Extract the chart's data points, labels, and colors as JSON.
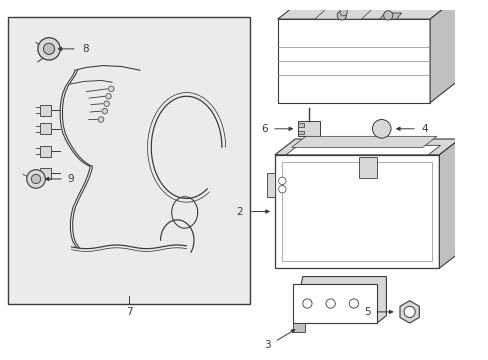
{
  "bg": "#ffffff",
  "panel_bg": "#ebebeb",
  "lc": "#3a3a3a",
  "gray1": "#d8d8d8",
  "gray2": "#c0c0c0",
  "gray3": "#b0b0b0",
  "figsize": [
    4.89,
    3.6
  ],
  "dpi": 100
}
